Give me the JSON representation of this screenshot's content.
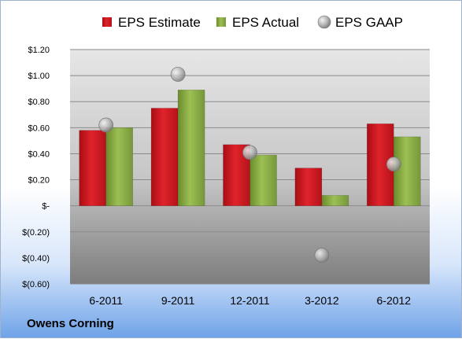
{
  "company": "Owens Corning",
  "chart_data": {
    "type": "bar",
    "categories": [
      "6-2011",
      "9-2011",
      "12-2011",
      "3-2012",
      "6-2012"
    ],
    "series": [
      {
        "name": "EPS Estimate",
        "kind": "bar",
        "color": "#c0141c",
        "values": [
          0.58,
          0.75,
          0.47,
          0.29,
          0.63
        ]
      },
      {
        "name": "EPS Actual",
        "kind": "bar",
        "color": "#7fa23a",
        "values": [
          0.6,
          0.89,
          0.39,
          0.08,
          0.53
        ]
      },
      {
        "name": "EPS GAAP",
        "kind": "marker",
        "color": "#9a9a9a",
        "values": [
          0.62,
          1.01,
          0.41,
          -0.38,
          0.32
        ]
      }
    ],
    "ylim": [
      -0.6,
      1.2
    ],
    "yticks": [
      1.2,
      1.0,
      0.8,
      0.6,
      0.4,
      0.2,
      0,
      -0.2,
      -0.4,
      -0.6
    ],
    "ytick_labels": [
      "$1.20",
      "$1.00",
      "$0.80",
      "$0.60",
      "$0.40",
      "$0.20",
      "$-",
      "$(0.20)",
      "$(0.40)",
      "$(0.60)"
    ],
    "legend_position": "top",
    "grid": true
  }
}
